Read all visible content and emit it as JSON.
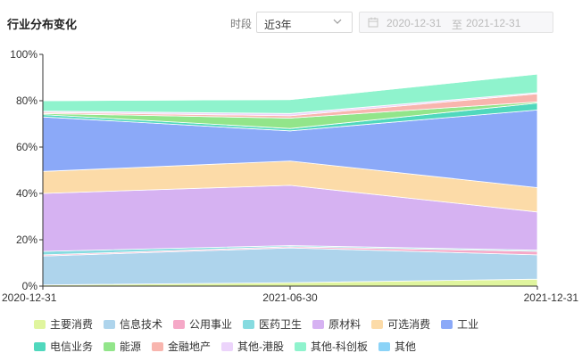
{
  "header": {
    "title": "行业分布变化",
    "period_label": "时段",
    "period_value": "近3年",
    "date_start": "2020-12-31",
    "date_separator": "至",
    "date_end": "2021-12-31"
  },
  "icons": {
    "dropdown": "chevron-down-icon",
    "calendar": "calendar-icon"
  },
  "chart_data": {
    "type": "area",
    "stacked": true,
    "x": [
      "2020-12-31",
      "2021-06-30",
      "2021-12-31"
    ],
    "ylim": [
      0,
      100
    ],
    "yticks": [
      "0%",
      "20%",
      "40%",
      "60%",
      "80%",
      "100%"
    ],
    "grid": false,
    "legend_position": "bottom",
    "series": [
      {
        "name": "主要消费",
        "color": "#e0f59e",
        "values": [
          0.5,
          1.5,
          3.0
        ]
      },
      {
        "name": "信息技术",
        "color": "#aed4ec",
        "values": [
          12.5,
          15.0,
          10.5
        ]
      },
      {
        "name": "公用事业",
        "color": "#f5a8c7",
        "values": [
          0.5,
          0.5,
          1.5
        ]
      },
      {
        "name": "医药卫生",
        "color": "#86dbe0",
        "values": [
          1.5,
          0.5,
          0.5
        ]
      },
      {
        "name": "原材料",
        "color": "#d6b2f2",
        "values": [
          25.0,
          26.0,
          16.5
        ]
      },
      {
        "name": "可选消费",
        "color": "#fcdba8",
        "values": [
          9.5,
          10.5,
          10.5
        ]
      },
      {
        "name": "工业",
        "color": "#8ba9f8",
        "values": [
          23.5,
          13.0,
          33.5
        ]
      },
      {
        "name": "电信业务",
        "color": "#50d8bd",
        "values": [
          1.0,
          1.0,
          3.0
        ]
      },
      {
        "name": "能源",
        "color": "#92e58a",
        "values": [
          0.5,
          4.5,
          0.5
        ]
      },
      {
        "name": "金融地产",
        "color": "#f8b5ae",
        "values": [
          0.5,
          1.0,
          3.5
        ]
      },
      {
        "name": "其他-港股",
        "color": "#ecd4fb",
        "values": [
          0.5,
          1.0,
          0.5
        ]
      },
      {
        "name": "其他-科创板",
        "color": "#8ff3cd",
        "values": [
          4.5,
          6.0,
          8.0
        ]
      },
      {
        "name": "其他",
        "color": "#8bd3f7",
        "values": [
          0,
          0,
          0
        ]
      }
    ]
  }
}
